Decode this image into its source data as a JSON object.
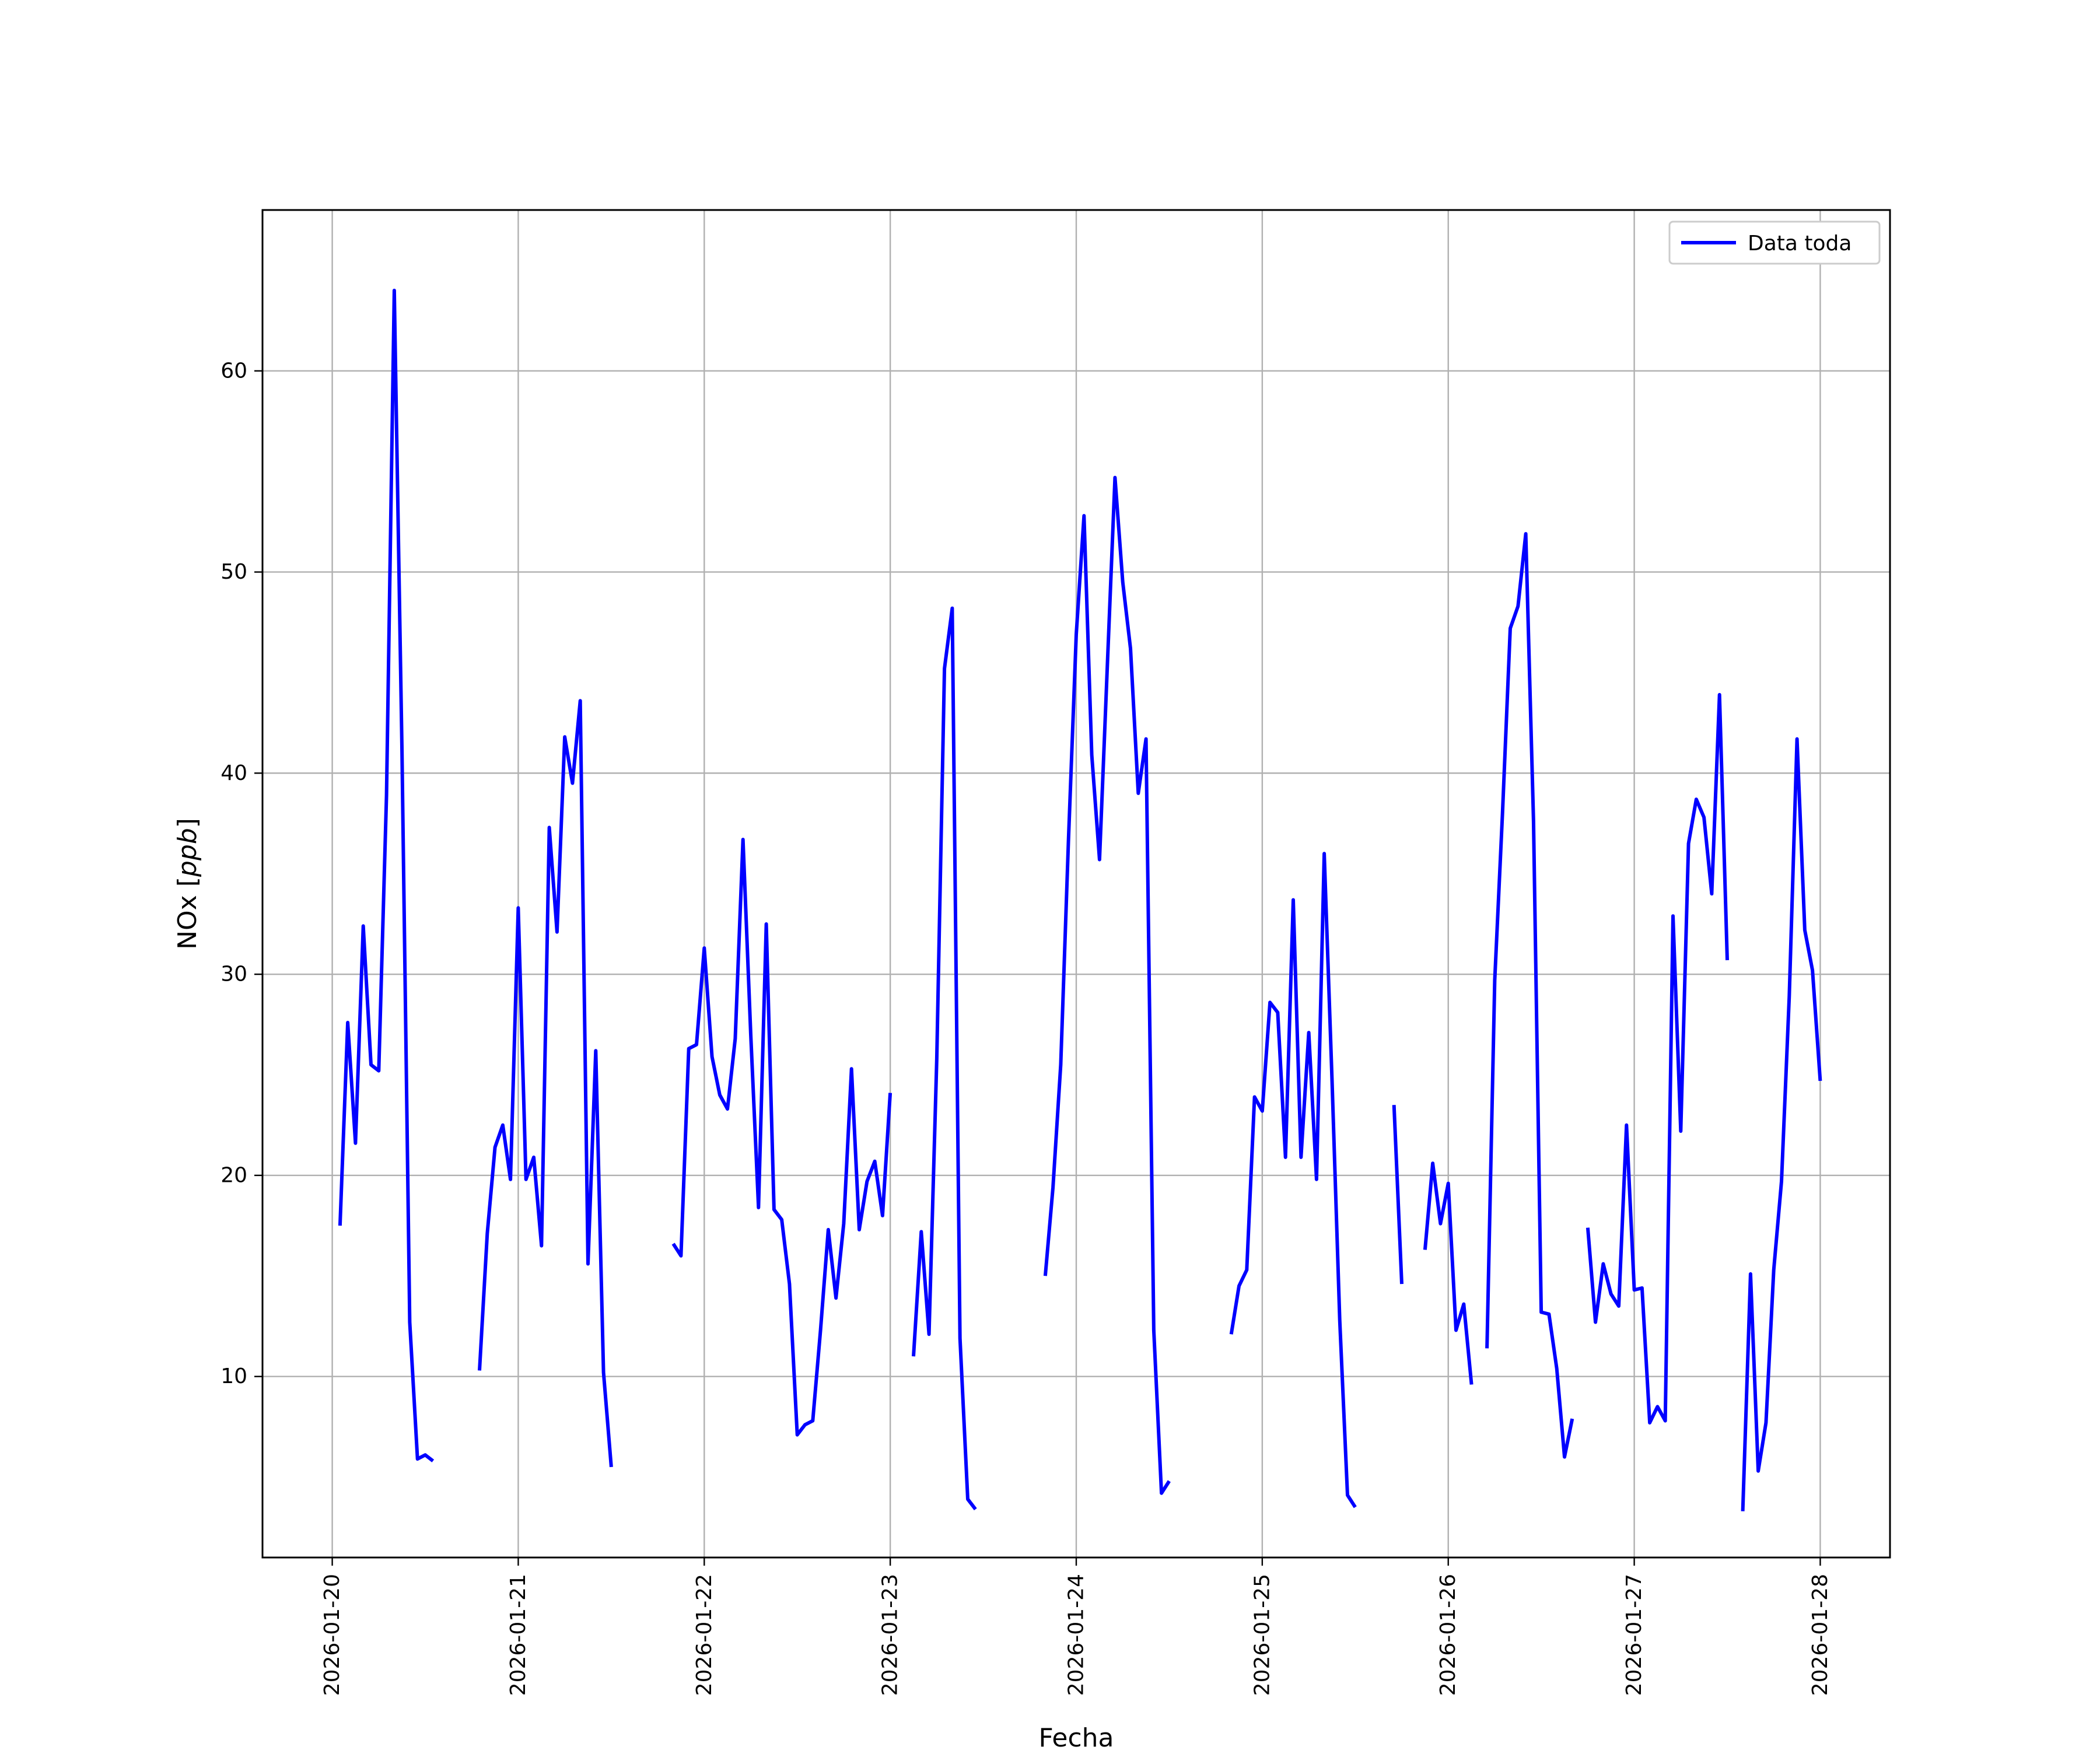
{
  "chart_data": {
    "type": "line",
    "title": "",
    "xlabel": "Fecha",
    "ylabel_main": "NOx [",
    "ylabel_italic": "ppb",
    "ylabel_close": "]",
    "xlim": [
      "2026-01-19 15:00",
      "2026-01-28 09:00"
    ],
    "ylim": [
      1,
      68
    ],
    "x_ticks": [
      "2026-01-20",
      "2026-01-21",
      "2026-01-22",
      "2026-01-23",
      "2026-01-24",
      "2026-01-25",
      "2026-01-26",
      "2026-01-27",
      "2026-01-28"
    ],
    "y_ticks": [
      10,
      20,
      30,
      40,
      50,
      60
    ],
    "grid": true,
    "legend_position": "top-right",
    "series": [
      {
        "name": "Data toda",
        "color": "#0000ff",
        "segments": [
          [
            [
              "2026-01-20 01:00",
              17.5
            ],
            [
              "2026-01-20 02:00",
              27.6
            ],
            [
              "2026-01-20 03:00",
              21.6
            ],
            [
              "2026-01-20 04:00",
              32.4
            ],
            [
              "2026-01-20 05:00",
              25.5
            ],
            [
              "2026-01-20 06:00",
              25.2
            ],
            [
              "2026-01-20 07:00",
              38.9
            ],
            [
              "2026-01-20 08:00",
              64.0
            ],
            [
              "2026-01-20 09:00",
              41.1
            ],
            [
              "2026-01-20 10:00",
              12.7
            ],
            [
              "2026-01-20 11:00",
              5.9
            ],
            [
              "2026-01-20 12:00",
              6.1
            ],
            [
              "2026-01-20 13:00",
              5.8
            ]
          ],
          [
            [
              "2026-01-20 19:00",
              10.3
            ],
            [
              "2026-01-20 20:00",
              17.1
            ],
            [
              "2026-01-20 21:00",
              21.4
            ],
            [
              "2026-01-20 22:00",
              22.5
            ],
            [
              "2026-01-20 23:00",
              19.8
            ],
            [
              "2026-01-21 00:00",
              33.3
            ],
            [
              "2026-01-21 01:00",
              19.8
            ],
            [
              "2026-01-21 02:00",
              20.9
            ],
            [
              "2026-01-21 03:00",
              16.5
            ],
            [
              "2026-01-21 04:00",
              37.3
            ],
            [
              "2026-01-21 05:00",
              32.1
            ],
            [
              "2026-01-21 06:00",
              41.8
            ],
            [
              "2026-01-21 07:00",
              39.5
            ],
            [
              "2026-01-21 08:00",
              43.6
            ],
            [
              "2026-01-21 09:00",
              15.6
            ],
            [
              "2026-01-21 10:00",
              26.2
            ],
            [
              "2026-01-21 11:00",
              10.2
            ],
            [
              "2026-01-21 12:00",
              5.5
            ]
          ],
          [
            [
              "2026-01-21 20:00",
              16.6
            ],
            [
              "2026-01-21 21:00",
              16.0
            ],
            [
              "2026-01-21 22:00",
              26.3
            ],
            [
              "2026-01-21 23:00",
              26.5
            ],
            [
              "2026-01-22 00:00",
              31.3
            ],
            [
              "2026-01-22 01:00",
              25.9
            ],
            [
              "2026-01-22 02:00",
              24.0
            ],
            [
              "2026-01-22 03:00",
              23.3
            ],
            [
              "2026-01-22 04:00",
              26.8
            ],
            [
              "2026-01-22 05:00",
              36.7
            ],
            [
              "2026-01-22 06:00",
              27.0
            ],
            [
              "2026-01-22 07:00",
              18.4
            ],
            [
              "2026-01-22 08:00",
              32.5
            ],
            [
              "2026-01-22 09:00",
              18.3
            ],
            [
              "2026-01-22 10:00",
              17.8
            ],
            [
              "2026-01-22 11:00",
              14.6
            ],
            [
              "2026-01-22 12:00",
              7.1
            ],
            [
              "2026-01-22 13:00",
              7.6
            ],
            [
              "2026-01-22 14:00",
              7.8
            ],
            [
              "2026-01-22 15:00",
              12.3
            ],
            [
              "2026-01-22 16:00",
              17.3
            ],
            [
              "2026-01-22 17:00",
              13.9
            ],
            [
              "2026-01-22 18:00",
              17.6
            ],
            [
              "2026-01-22 19:00",
              25.3
            ],
            [
              "2026-01-22 20:00",
              17.3
            ],
            [
              "2026-01-22 21:00",
              19.7
            ],
            [
              "2026-01-22 22:00",
              20.7
            ],
            [
              "2026-01-22 23:00",
              18.0
            ],
            [
              "2026-01-23 00:00",
              24.1
            ]
          ],
          [
            [
              "2026-01-23 03:00",
              11.0
            ],
            [
              "2026-01-23 04:00",
              17.2
            ],
            [
              "2026-01-23 05:00",
              12.1
            ],
            [
              "2026-01-23 06:00",
              25.8
            ],
            [
              "2026-01-23 07:00",
              45.2
            ],
            [
              "2026-01-23 08:00",
              48.2
            ],
            [
              "2026-01-23 09:00",
              11.9
            ],
            [
              "2026-01-23 10:00",
              3.9
            ],
            [
              "2026-01-23 11:00",
              3.4
            ]
          ],
          [
            [
              "2026-01-23 20:00",
              15.0
            ],
            [
              "2026-01-23 21:00",
              19.4
            ],
            [
              "2026-01-23 22:00",
              25.5
            ],
            [
              "2026-01-23 23:00",
              36.7
            ],
            [
              "2026-01-24 00:00",
              46.9
            ],
            [
              "2026-01-24 01:00",
              52.8
            ],
            [
              "2026-01-24 02:00",
              40.9
            ],
            [
              "2026-01-24 03:00",
              35.7
            ],
            [
              "2026-01-24 04:00",
              45.2
            ],
            [
              "2026-01-24 05:00",
              54.7
            ],
            [
              "2026-01-24 06:00",
              49.5
            ],
            [
              "2026-01-24 07:00",
              46.2
            ],
            [
              "2026-01-24 08:00",
              39.0
            ],
            [
              "2026-01-24 09:00",
              41.7
            ],
            [
              "2026-01-24 10:00",
              12.3
            ],
            [
              "2026-01-24 11:00",
              4.2
            ],
            [
              "2026-01-24 12:00",
              4.8
            ]
          ],
          [
            [
              "2026-01-24 20:00",
              12.1
            ],
            [
              "2026-01-24 21:00",
              14.5
            ],
            [
              "2026-01-24 22:00",
              15.3
            ],
            [
              "2026-01-24 23:00",
              23.9
            ],
            [
              "2026-01-25 00:00",
              23.2
            ],
            [
              "2026-01-25 01:00",
              28.6
            ],
            [
              "2026-01-25 02:00",
              28.1
            ],
            [
              "2026-01-25 03:00",
              20.9
            ],
            [
              "2026-01-25 04:00",
              33.7
            ],
            [
              "2026-01-25 05:00",
              20.9
            ],
            [
              "2026-01-25 06:00",
              27.1
            ],
            [
              "2026-01-25 07:00",
              19.8
            ],
            [
              "2026-01-25 08:00",
              36.0
            ],
            [
              "2026-01-25 09:00",
              24.8
            ],
            [
              "2026-01-25 10:00",
              12.8
            ],
            [
              "2026-01-25 11:00",
              4.1
            ],
            [
              "2026-01-25 12:00",
              3.5
            ]
          ],
          [
            [
              "2026-01-25 17:00",
              23.5
            ],
            [
              "2026-01-25 18:00",
              14.6
            ]
          ],
          [
            [
              "2026-01-25 21:00",
              16.3
            ],
            [
              "2026-01-25 22:00",
              20.6
            ],
            [
              "2026-01-25 23:00",
              17.6
            ],
            [
              "2026-01-26 00:00",
              19.6
            ],
            [
              "2026-01-26 01:00",
              12.3
            ],
            [
              "2026-01-26 02:00",
              13.6
            ],
            [
              "2026-01-26 03:00",
              9.6
            ]
          ],
          [
            [
              "2026-01-26 05:00",
              11.4
            ],
            [
              "2026-01-26 06:00",
              29.7
            ],
            [
              "2026-01-26 07:00",
              38.0
            ],
            [
              "2026-01-26 08:00",
              47.2
            ],
            [
              "2026-01-26 09:00",
              48.3
            ],
            [
              "2026-01-26 10:00",
              51.9
            ],
            [
              "2026-01-26 11:00",
              37.6
            ],
            [
              "2026-01-26 12:00",
              13.2
            ],
            [
              "2026-01-26 13:00",
              13.1
            ],
            [
              "2026-01-26 14:00",
              10.4
            ],
            [
              "2026-01-26 15:00",
              6.0
            ],
            [
              "2026-01-26 16:00",
              7.9
            ]
          ],
          [
            [
              "2026-01-26 18:00",
              17.4
            ],
            [
              "2026-01-26 19:00",
              12.7
            ],
            [
              "2026-01-26 20:00",
              15.6
            ],
            [
              "2026-01-26 21:00",
              14.1
            ],
            [
              "2026-01-26 22:00",
              13.5
            ],
            [
              "2026-01-26 23:00",
              22.5
            ],
            [
              "2026-01-27 00:00",
              14.3
            ],
            [
              "2026-01-27 01:00",
              14.4
            ],
            [
              "2026-01-27 02:00",
              7.7
            ],
            [
              "2026-01-27 03:00",
              8.5
            ],
            [
              "2026-01-27 04:00",
              7.8
            ],
            [
              "2026-01-27 05:00",
              32.9
            ],
            [
              "2026-01-27 06:00",
              22.2
            ],
            [
              "2026-01-27 07:00",
              36.5
            ],
            [
              "2026-01-27 08:00",
              38.7
            ],
            [
              "2026-01-27 09:00",
              37.8
            ],
            [
              "2026-01-27 10:00",
              34.0
            ],
            [
              "2026-01-27 11:00",
              43.9
            ],
            [
              "2026-01-27 12:00",
              30.7
            ]
          ],
          [
            [
              "2026-01-27 14:00",
              3.3
            ],
            [
              "2026-01-27 15:00",
              15.1
            ],
            [
              "2026-01-27 16:00",
              5.3
            ],
            [
              "2026-01-27 17:00",
              7.7
            ],
            [
              "2026-01-27 18:00",
              15.3
            ],
            [
              "2026-01-27 19:00",
              19.7
            ],
            [
              "2026-01-27 20:00",
              28.9
            ],
            [
              "2026-01-27 21:00",
              41.7
            ],
            [
              "2026-01-27 22:00",
              32.2
            ],
            [
              "2026-01-27 23:00",
              30.2
            ],
            [
              "2026-01-28 00:00",
              24.7
            ]
          ]
        ]
      }
    ]
  }
}
